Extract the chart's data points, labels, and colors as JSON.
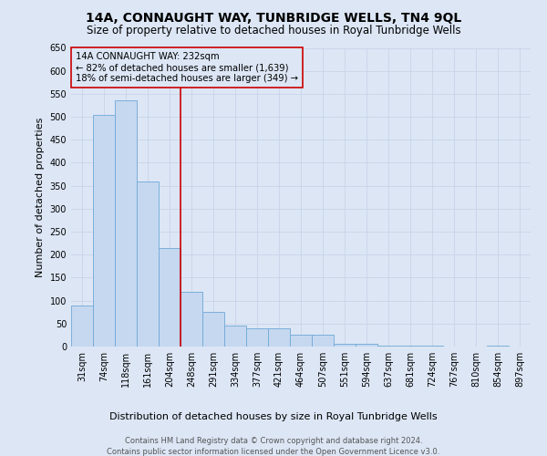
{
  "title": "14A, CONNAUGHT WAY, TUNBRIDGE WELLS, TN4 9QL",
  "subtitle": "Size of property relative to detached houses in Royal Tunbridge Wells",
  "xlabel": "Distribution of detached houses by size in Royal Tunbridge Wells",
  "ylabel": "Number of detached properties",
  "footer_line1": "Contains HM Land Registry data © Crown copyright and database right 2024.",
  "footer_line2": "Contains public sector information licensed under the Open Government Licence v3.0.",
  "annotation_line1": "14A CONNAUGHT WAY: 232sqm",
  "annotation_line2": "← 82% of detached houses are smaller (1,639)",
  "annotation_line3": "18% of semi-detached houses are larger (349) →",
  "bar_color": "#c5d8f0",
  "bar_edge_color": "#6fa8d6",
  "vline_color": "#cc0000",
  "annotation_box_edge_color": "#cc0000",
  "grid_color": "#c8d4e8",
  "background_color": "#dce6f5",
  "categories": [
    "31sqm",
    "74sqm",
    "118sqm",
    "161sqm",
    "204sqm",
    "248sqm",
    "291sqm",
    "334sqm",
    "377sqm",
    "421sqm",
    "464sqm",
    "507sqm",
    "551sqm",
    "594sqm",
    "637sqm",
    "681sqm",
    "724sqm",
    "767sqm",
    "810sqm",
    "854sqm",
    "897sqm"
  ],
  "values": [
    90,
    505,
    535,
    360,
    215,
    120,
    75,
    45,
    40,
    40,
    25,
    25,
    5,
    5,
    2,
    1,
    1,
    0,
    0,
    1,
    0
  ],
  "ylim": [
    0,
    650
  ],
  "yticks": [
    0,
    50,
    100,
    150,
    200,
    250,
    300,
    350,
    400,
    450,
    500,
    550,
    600,
    650
  ],
  "vline_x_idx": 4.5,
  "title_fontsize": 10,
  "subtitle_fontsize": 8.5,
  "label_fontsize": 8,
  "tick_fontsize": 7,
  "footer_fontsize": 6
}
